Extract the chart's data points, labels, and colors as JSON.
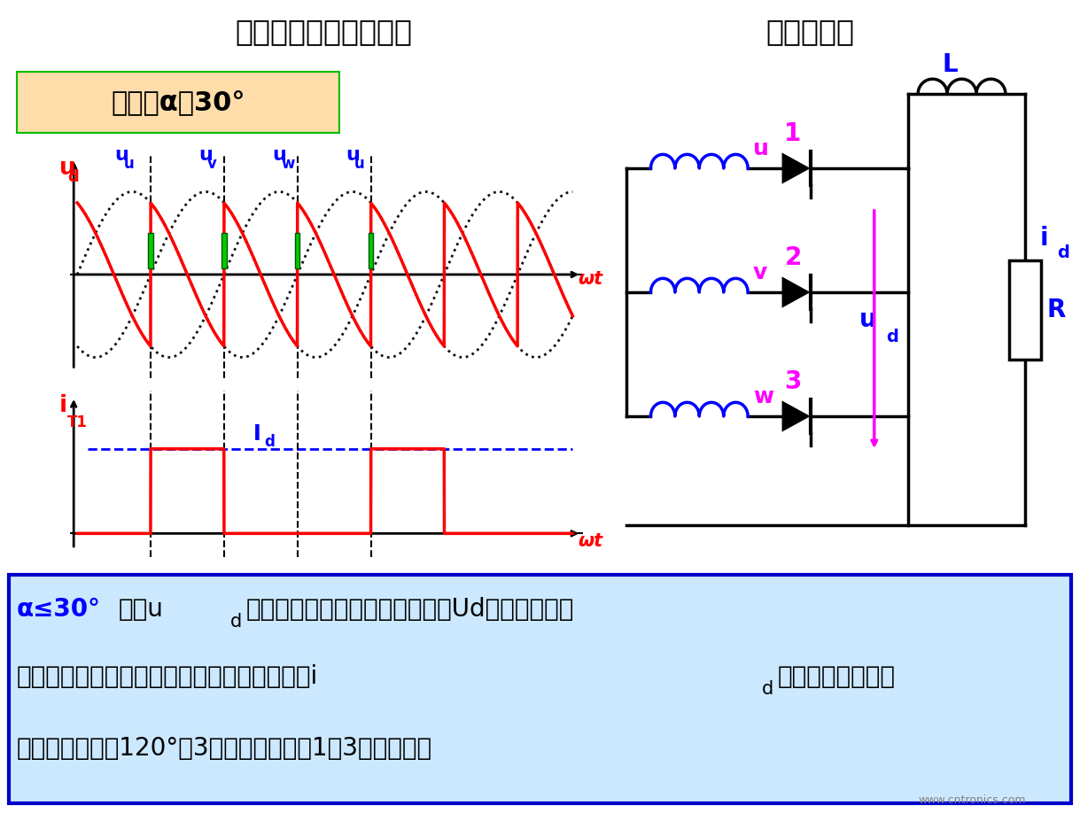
{
  "fig_w": 12.19,
  "fig_h": 9.18,
  "dpi": 100,
  "header_bg": "#9999bb",
  "header_text_left": "三相半波可控整流电路",
  "header_text_right": "电感性负载",
  "main_bg": "#ffffff",
  "ctrl_box_bg": "#ffddaa",
  "ctrl_box_border": "#00bb00",
  "ctrl_text": "控制角α＝30°",
  "bottom_bg": "#cce8ff",
  "bottom_border": "#0000cc",
  "bottom_line1": "α≤30°时，u d 波形与纯电阻性负载波形一样，Ud计算式和纯电",
  "bottom_line2": "阻性负载一样；当电感足够大时，可近似认为i d 波形为平直波形，",
  "bottom_line3": "晶闸管导通角为120°，3个晶闸管各负担1／3的负载电流",
  "alpha_rad": 0.5235987755982988,
  "waveform_color_red": "#ff0000",
  "waveform_color_black": "#000000",
  "waveform_color_blue": "#0000ff",
  "waveform_color_green": "#00bb00",
  "circuit_magenta": "#ff00ff",
  "circuit_blue": "#0000ff",
  "circuit_black": "#000000"
}
